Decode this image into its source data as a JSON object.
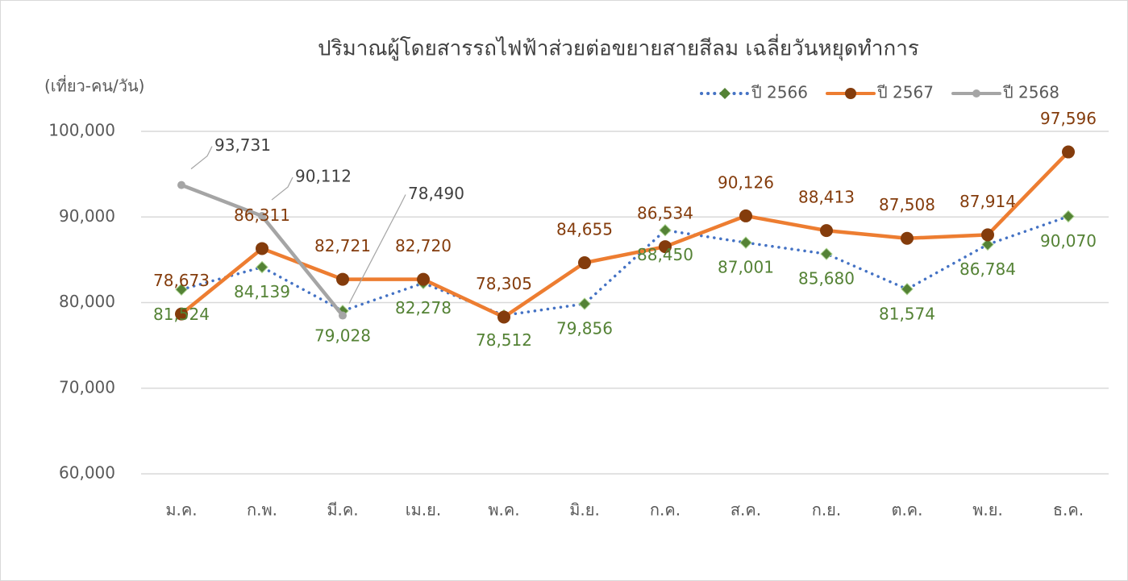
{
  "chart_data": {
    "type": "line",
    "title": "ปริมาณผู้โดยสารรถไฟฟ้าส่วยต่อขยายสายสีลม เฉลี่ยวันหยุดทำการ",
    "y_label": "(เที่ยว-คน/วัน)",
    "categories": [
      "ม.ค.",
      "ก.พ.",
      "มี.ค.",
      "เม.ย.",
      "พ.ค.",
      "มิ.ย.",
      "ก.ค.",
      "ส.ค.",
      "ก.ย.",
      "ต.ค.",
      "พ.ย.",
      "ธ.ค."
    ],
    "series": [
      {
        "name": "ปี 2566",
        "color": "#4472c4",
        "line_style": "dotted",
        "marker": "diamond",
        "marker_color": "#548235",
        "label_color": "#548235",
        "values": [
          81524,
          84139,
          79028,
          82278,
          78512,
          79856,
          88450,
          87001,
          85680,
          81574,
          86784,
          90070
        ],
        "value_labels": [
          "81,524",
          "84,139",
          "79,028",
          "82,278",
          "78,512",
          "79,856",
          "88,450",
          "87,001",
          "85,680",
          "81,574",
          "86,784",
          "90,070"
        ]
      },
      {
        "name": "ปี 2567",
        "color": "#ed7d31",
        "line_style": "solid",
        "marker": "circle",
        "marker_color": "#843c0c",
        "label_color": "#843c0c",
        "values": [
          78673,
          86311,
          82721,
          82720,
          78305,
          84655,
          86534,
          90126,
          88413,
          87508,
          87914,
          97596
        ],
        "value_labels": [
          "78,673",
          "86,311",
          "82,721",
          "82,720",
          "78,305",
          "84,655",
          "86,534",
          "90,126",
          "88,413",
          "87,508",
          "87,914",
          "97,596"
        ]
      },
      {
        "name": "ปี 2568",
        "color": "#a5a5a5",
        "line_style": "solid",
        "marker": "circle",
        "marker_color": "#a5a5a5",
        "label_color": "#404040",
        "values": [
          93731,
          90112,
          78490,
          null,
          null,
          null,
          null,
          null,
          null,
          null,
          null,
          null
        ],
        "value_labels": [
          "93,731",
          "90,112",
          "78,490",
          null,
          null,
          null,
          null,
          null,
          null,
          null,
          null,
          null
        ]
      }
    ],
    "ylim": [
      60000,
      100000
    ],
    "yticks": [
      {
        "value": 60000,
        "label": "60,000"
      },
      {
        "value": 70000,
        "label": "70,000"
      },
      {
        "value": 80000,
        "label": "80,000"
      },
      {
        "value": 90000,
        "label": "90,000"
      },
      {
        "value": 100000,
        "label": "100,000"
      }
    ],
    "grid": true,
    "legend": "top-right"
  }
}
